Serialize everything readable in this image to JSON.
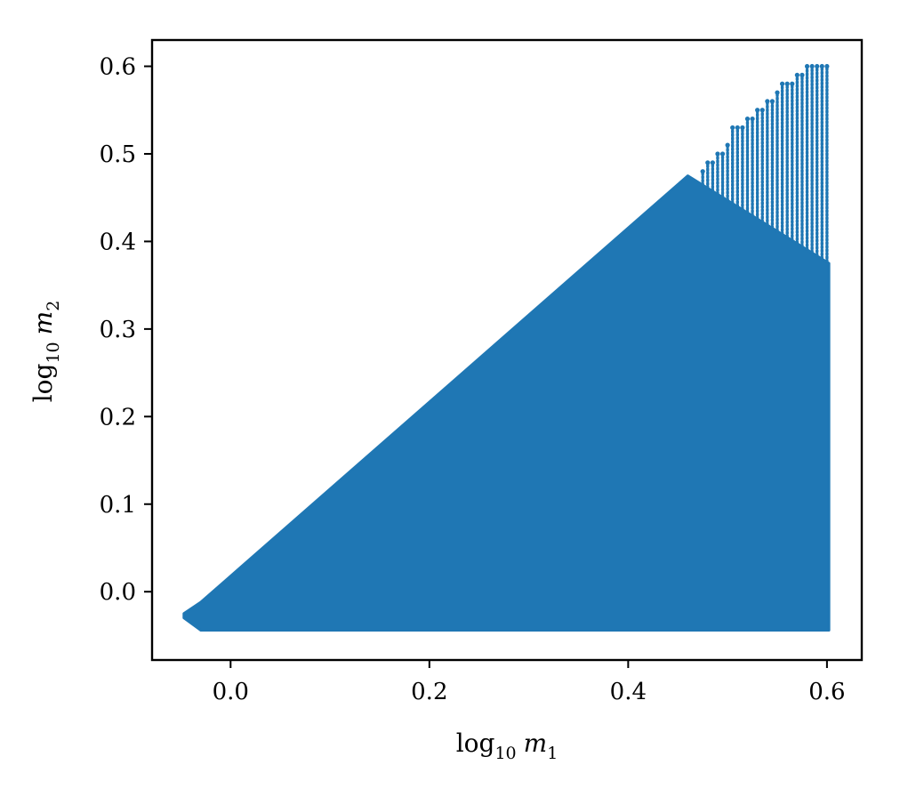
{
  "chart_data": {
    "type": "scatter",
    "title": "",
    "xlabel": {
      "base": "log",
      "base_sub": "10",
      "var": "m",
      "var_sub": "1"
    },
    "ylabel": {
      "base": "log",
      "base_sub": "10",
      "var": "m",
      "var_sub": "2"
    },
    "xlim": [
      -0.079,
      0.635
    ],
    "ylim": [
      -0.078,
      0.63
    ],
    "xticks": [
      0.0,
      0.2,
      0.4,
      0.6
    ],
    "xtick_labels": [
      "0.0",
      "0.2",
      "0.4",
      "0.6"
    ],
    "yticks": [
      0.0,
      0.1,
      0.2,
      0.3,
      0.4,
      0.5,
      0.6
    ],
    "ytick_labels": [
      "0.0",
      "0.1",
      "0.2",
      "0.3",
      "0.4",
      "0.5",
      "0.6"
    ],
    "grid": false,
    "legend": "none",
    "series": [
      {
        "color": "#1f77b4",
        "filled_region": [
          [
            -0.047,
            -0.025
          ],
          [
            -0.047,
            -0.03
          ],
          [
            -0.03,
            -0.044
          ],
          [
            0.602,
            -0.044
          ],
          [
            0.602,
            0.375
          ],
          [
            0.46,
            0.475
          ],
          [
            -0.03,
            -0.012
          ]
        ],
        "column_tops": [
          [
            0.475,
            0.48
          ],
          [
            0.48,
            0.49
          ],
          [
            0.485,
            0.49
          ],
          [
            0.49,
            0.5
          ],
          [
            0.495,
            0.5
          ],
          [
            0.5,
            0.51
          ],
          [
            0.505,
            0.53
          ],
          [
            0.51,
            0.53
          ],
          [
            0.515,
            0.53
          ],
          [
            0.52,
            0.54
          ],
          [
            0.525,
            0.54
          ],
          [
            0.53,
            0.55
          ],
          [
            0.535,
            0.55
          ],
          [
            0.54,
            0.56
          ],
          [
            0.545,
            0.56
          ],
          [
            0.55,
            0.57
          ],
          [
            0.555,
            0.58
          ],
          [
            0.56,
            0.58
          ],
          [
            0.565,
            0.58
          ],
          [
            0.57,
            0.59
          ],
          [
            0.575,
            0.59
          ],
          [
            0.58,
            0.6
          ],
          [
            0.585,
            0.6
          ],
          [
            0.59,
            0.6
          ],
          [
            0.595,
            0.6
          ],
          [
            0.6,
            0.6
          ]
        ]
      }
    ]
  }
}
